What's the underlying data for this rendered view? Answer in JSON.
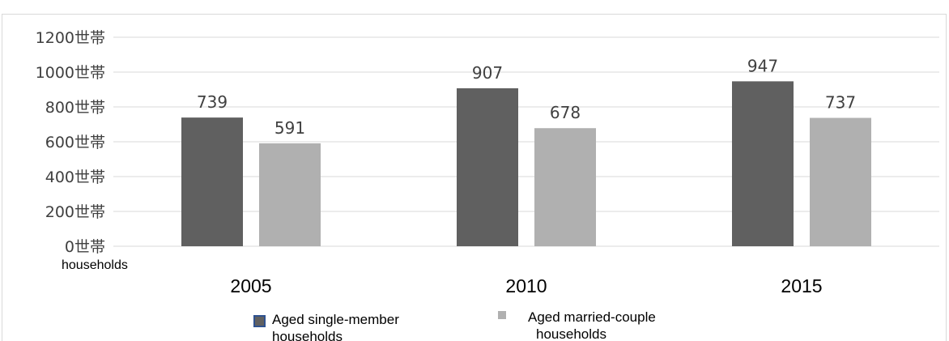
{
  "chart_data": {
    "type": "bar",
    "categories": [
      "2005",
      "2010",
      "2015"
    ],
    "series": [
      {
        "name": "Aged single-member households",
        "values": [
          739,
          907,
          947
        ],
        "color": "#606060"
      },
      {
        "name": "Aged married-couple households",
        "values": [
          591,
          678,
          737
        ],
        "color": "#b0b0b0"
      }
    ],
    "y_ticks": [
      "0世帯",
      "200世帯",
      "400世帯",
      "600世帯",
      "800世帯",
      "1000世帯",
      "1200世帯"
    ],
    "ylim": [
      0,
      1200
    ],
    "y_unit_label": "households",
    "grid": true,
    "legend_position": "bottom"
  }
}
